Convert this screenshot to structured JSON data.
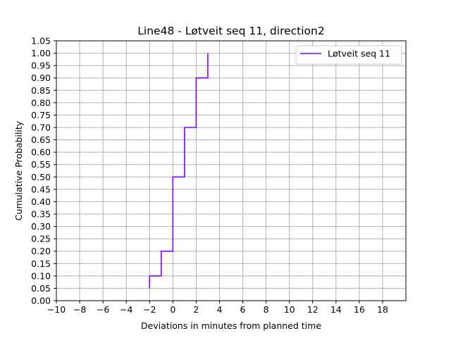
{
  "chart_data": {
    "type": "line",
    "step": "post",
    "title": "Line48 - Løtveit seq 11, direction2",
    "xlabel": "Deviations in minutes from planned time",
    "ylabel": "Cumulative Probability",
    "xlim": [
      -10,
      20
    ],
    "ylim": [
      0,
      1.05
    ],
    "xticks": [
      -10,
      -8,
      -6,
      -4,
      -2,
      0,
      2,
      4,
      6,
      8,
      10,
      12,
      14,
      16,
      18
    ],
    "xtick_labels": [
      "−10",
      "−8",
      "−6",
      "−4",
      "−2",
      "0",
      "2",
      "4",
      "6",
      "8",
      "10",
      "12",
      "14",
      "16",
      "18"
    ],
    "yticks": [
      0,
      0.05,
      0.1,
      0.15,
      0.2,
      0.25,
      0.3,
      0.35,
      0.4,
      0.45,
      0.5,
      0.55,
      0.6,
      0.65,
      0.7,
      0.75,
      0.8,
      0.85,
      0.9,
      0.95,
      1.0,
      1.05
    ],
    "ytick_labels": [
      "0.00",
      "0.05",
      "0.10",
      "0.15",
      "0.20",
      "0.25",
      "0.30",
      "0.35",
      "0.40",
      "0.45",
      "0.50",
      "0.55",
      "0.60",
      "0.65",
      "0.70",
      "0.75",
      "0.80",
      "0.85",
      "0.90",
      "0.95",
      "1.00",
      "1.05"
    ],
    "grid": true,
    "legend_position": "top-right",
    "series": [
      {
        "name": "Løtveit seq 11",
        "color": "#8000ff",
        "x": [
          -2,
          -2,
          -1,
          0,
          1,
          2,
          3
        ],
        "y": [
          0.05,
          0.1,
          0.2,
          0.5,
          0.7,
          0.9,
          1.0
        ]
      }
    ]
  }
}
